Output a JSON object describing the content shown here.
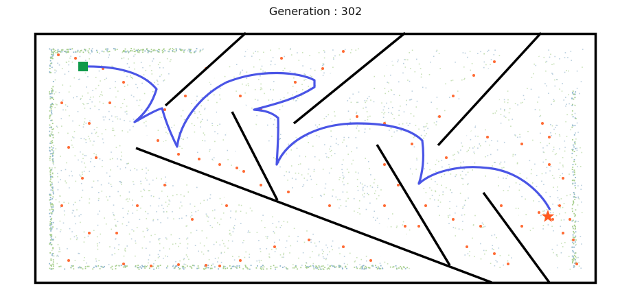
{
  "title": "Generation : 302",
  "colors": {
    "border": "#000000",
    "wall": "#000000",
    "path": "#4a55e6",
    "start": "#0f9a4a",
    "goal": "#ff5a1f",
    "elite_points": "#ff6a33",
    "population_points_light": "#bcd9a8",
    "population_points_blue": "#a9c3d6"
  },
  "markers": {
    "start_icon": "square-icon",
    "goal_icon": "star-icon"
  }
}
